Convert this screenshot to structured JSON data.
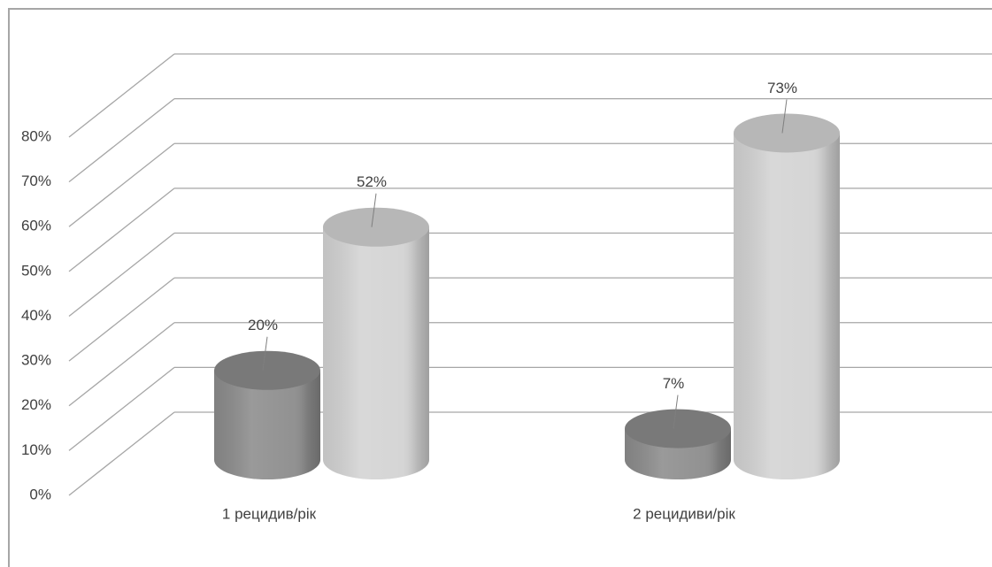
{
  "chart_data": {
    "type": "bar3d",
    "categories": [
      "1 рецидив/рік",
      "2 рецидиви/рік"
    ],
    "series": [
      {
        "color": "#8c8c8c",
        "values": [
          20,
          7
        ],
        "value_labels": [
          "20%",
          "7%"
        ]
      },
      {
        "color": "#d3d3d3",
        "values": [
          52,
          73
        ],
        "value_labels": [
          "52%",
          "73%"
        ]
      }
    ],
    "ylim": [
      0,
      80
    ],
    "yticks": [
      {
        "value": 0,
        "label": "0%"
      },
      {
        "value": 10,
        "label": "10%"
      },
      {
        "value": 20,
        "label": "20%"
      },
      {
        "value": 30,
        "label": "30%"
      },
      {
        "value": 40,
        "label": "40%"
      },
      {
        "value": 50,
        "label": "50%"
      },
      {
        "value": 60,
        "label": "60%"
      },
      {
        "value": 70,
        "label": "70%"
      },
      {
        "value": 80,
        "label": "80%"
      }
    ],
    "grid": true
  }
}
